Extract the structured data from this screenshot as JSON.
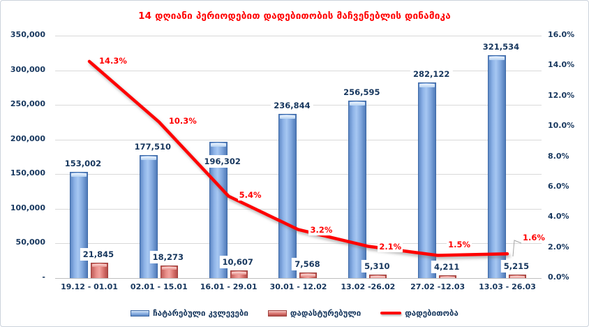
{
  "chart_data": {
    "type": "combo-bar-line",
    "title": "14 დღიანი პერიოდებით დადებითობის მაჩვენებლის დინამიკა",
    "title_color": "#FF0000",
    "grid": "horizontal",
    "legend_position": "bottom",
    "categories": [
      "19.12 - 01.01",
      "02.01 - 15.01",
      "16.01 - 29.01",
      "30.01 - 12.02",
      "13.02 -26.02",
      "27.02 -12.03",
      "13.03 - 26.03"
    ],
    "series": [
      {
        "name": "ჩატარებული კვლევები",
        "type": "bar",
        "axis": "left",
        "color": "#6E99D4",
        "values": [
          153002,
          177510,
          196302,
          236844,
          256595,
          282122,
          321534
        ],
        "labels": [
          "153,002",
          "177,510",
          "196,302",
          "236,844",
          "256,595",
          "282,122",
          "321,534"
        ]
      },
      {
        "name": "დადასტურებული",
        "type": "bar",
        "axis": "left",
        "color": "#D9736E",
        "values": [
          21845,
          18273,
          10607,
          7568,
          5310,
          4211,
          5215
        ],
        "labels": [
          "21,845",
          "18,273",
          "10,607",
          "7,568",
          "5,310",
          "4,211",
          "5,215"
        ]
      },
      {
        "name": "დადებითობა",
        "type": "line",
        "axis": "right",
        "color": "#FF0000",
        "values": [
          14.3,
          10.3,
          5.4,
          3.2,
          2.1,
          1.5,
          1.6
        ],
        "labels": [
          "14.3%",
          "10.3%",
          "5.4%",
          "3.2%",
          "2.1%",
          "1.5%",
          "1.6%"
        ]
      }
    ],
    "left_axis": {
      "max": 350000,
      "ticks": [
        {
          "label": "350,000",
          "value": 350000
        },
        {
          "label": "300,000",
          "value": 300000
        },
        {
          "label": "250,000",
          "value": 250000
        },
        {
          "label": "200,000",
          "value": 200000
        },
        {
          "label": "150,000",
          "value": 150000
        },
        {
          "label": "100,000",
          "value": 100000
        },
        {
          "label": "50,000",
          "value": 50000
        },
        {
          "label": "-",
          "value": 0
        }
      ]
    },
    "right_axis": {
      "max": 16,
      "ticks": [
        {
          "label": "16.0%",
          "value": 16
        },
        {
          "label": "14.0%",
          "value": 14
        },
        {
          "label": "12.0%",
          "value": 12
        },
        {
          "label": "10.0%",
          "value": 10
        },
        {
          "label": "8.0%",
          "value": 8
        },
        {
          "label": "6.0%",
          "value": 6
        },
        {
          "label": "4.0%",
          "value": 4
        },
        {
          "label": "2.0%",
          "value": 2
        },
        {
          "label": "0.0%",
          "value": 0
        }
      ]
    }
  }
}
